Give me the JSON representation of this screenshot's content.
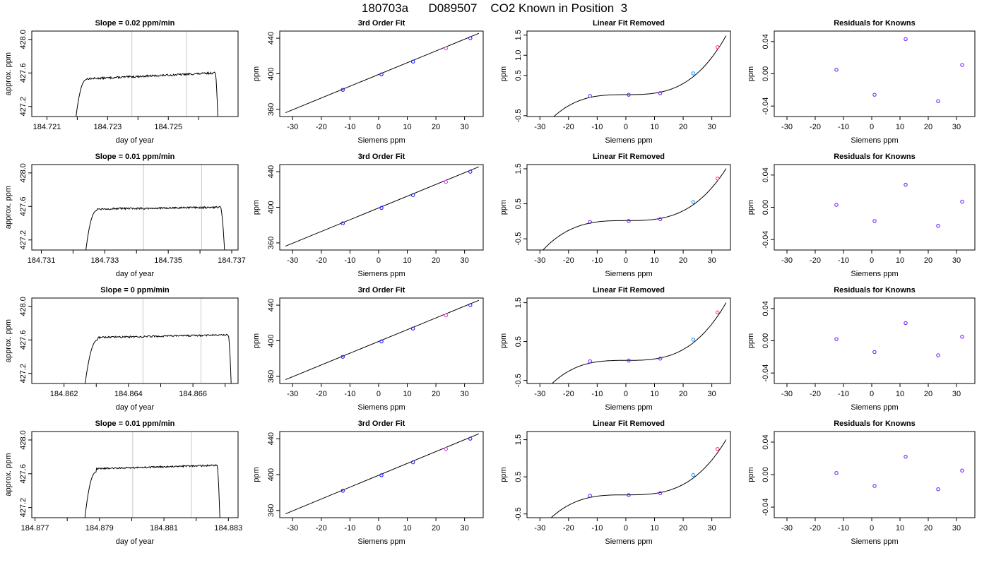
{
  "page": {
    "title": "180703a      D089507    CO2 Known in Position  3"
  },
  "chart_data": [
    {
      "type": "line",
      "panel": "time-series",
      "row": 1,
      "title": "Slope =  0.02  ppm/min",
      "xlabel": "day of year",
      "ylabel": "approx. ppm",
      "xlim": [
        184.7205,
        184.7273
      ],
      "ylim": [
        427.08,
        428.1
      ],
      "xticks": [
        184.721,
        184.723,
        184.725
      ],
      "xticks_unlabeled": [
        184.722,
        184.724,
        184.726
      ],
      "yticks": [
        427.2,
        427.6,
        428.0
      ],
      "vlines": [
        184.7238,
        184.7256
      ],
      "trace": {
        "x_start": 184.7219,
        "x_rise_end": 184.7223,
        "x_fall_start": 184.72655,
        "x_end": 184.72665,
        "y_start": 426.9,
        "y_rise_end": 427.52,
        "y_plateau_start": 427.53,
        "y_plateau_end": 427.6,
        "y_end": 426.9,
        "noise": 0.022
      }
    },
    {
      "type": "line",
      "panel": "fit",
      "row": 1,
      "title": "3rd Order Fit",
      "xlabel": "Siemens ppm",
      "ylabel": "ppm",
      "xlim": [
        -34.5,
        36.5
      ],
      "ylim": [
        352,
        448
      ],
      "xticks": [
        -30,
        -20,
        -10,
        0,
        10,
        20,
        30
      ],
      "yticks": [
        360,
        400,
        440
      ],
      "line": {
        "x": [
          -32.5,
          35
        ],
        "y": [
          356.3,
          445.5
        ]
      },
      "points": {
        "x": [
          -12.5,
          1,
          12,
          23.5,
          32
        ],
        "y": [
          382,
          399.3,
          413.7,
          428.5,
          440
        ]
      },
      "point_colors": [
        "#2222ff",
        "#2222ff",
        "#2222ff",
        "#dd44dd",
        "#2222ff"
      ]
    },
    {
      "type": "line",
      "panel": "linear-removed",
      "row": 1,
      "title": "Linear Fit Removed",
      "xlabel": "Siemens ppm",
      "ylabel": "ppm",
      "xlim": [
        -34.5,
        36.5
      ],
      "ylim": [
        -0.52,
        1.6
      ],
      "xticks": [
        -30,
        -20,
        -10,
        0,
        10,
        20,
        30
      ],
      "yticks": [
        -0.5,
        0.5,
        1.0,
        1.5
      ],
      "curve": {
        "x0": -32.5,
        "x1": 35,
        "cubic": [
          3.4e-05,
          -1e-06,
          0.0002,
          0.023
        ]
      },
      "points": {
        "x": [
          -12.5,
          1,
          12,
          23.5,
          32
        ],
        "y": [
          -0.01,
          0.02,
          0.06,
          0.55,
          1.2
        ]
      },
      "point_colors": [
        "#7722ff",
        "#7722ff",
        "#7722ff",
        "#2299ff",
        "#ff3377"
      ]
    },
    {
      "type": "scatter",
      "panel": "residuals",
      "row": 1,
      "title": "Residuals for Knowns",
      "xlabel": "Siemens ppm",
      "ylabel": "ppm",
      "xlim": [
        -34.5,
        36.5
      ],
      "ylim": [
        -0.053,
        0.053
      ],
      "xticks": [
        -30,
        -20,
        -10,
        0,
        10,
        20,
        30
      ],
      "yticks": [
        -0.04,
        0.0,
        0.04
      ],
      "points": {
        "x": [
          -12.5,
          1,
          12,
          23.5,
          32
        ],
        "y": [
          0.005,
          -0.026,
          0.043,
          -0.034,
          0.011
        ]
      },
      "point_colors": [
        "#7722ff",
        "#7722ff",
        "#7722ff",
        "#7722ff",
        "#7722ff"
      ]
    },
    {
      "type": "line",
      "panel": "time-series",
      "row": 2,
      "title": "Slope =  0.01  ppm/min",
      "xlabel": "day of year",
      "ylabel": "approx. ppm",
      "xlim": [
        184.7307,
        184.7372
      ],
      "ylim": [
        427.08,
        428.1
      ],
      "xticks": [
        184.731,
        184.733,
        184.735,
        184.737
      ],
      "xticks_unlabeled": [
        184.732,
        184.734,
        184.736
      ],
      "yticks": [
        427.2,
        427.6,
        428.0
      ],
      "vlines": [
        184.73422,
        184.73605
      ],
      "trace": {
        "x_start": 184.73235,
        "x_rise_end": 184.73275,
        "x_fall_start": 184.73665,
        "x_end": 184.7368,
        "y_start": 426.9,
        "y_rise_end": 427.55,
        "y_plateau_start": 427.57,
        "y_plateau_end": 427.59,
        "y_end": 426.9,
        "noise": 0.022
      }
    },
    {
      "type": "line",
      "panel": "fit",
      "row": 2,
      "title": "3rd Order Fit",
      "xlabel": "Siemens ppm",
      "ylabel": "ppm",
      "xlim": [
        -34.5,
        36.5
      ],
      "ylim": [
        352,
        448
      ],
      "xticks": [
        -30,
        -20,
        -10,
        0,
        10,
        20,
        30
      ],
      "yticks": [
        360,
        400,
        440
      ],
      "line": {
        "x": [
          -32.5,
          35
        ],
        "y": [
          356.3,
          445.5
        ]
      },
      "points": {
        "x": [
          -12.5,
          1,
          12,
          23.5,
          32
        ],
        "y": [
          382,
          399.3,
          413.7,
          428.5,
          440
        ]
      },
      "point_colors": [
        "#2222ff",
        "#2222ff",
        "#2222ff",
        "#dd44dd",
        "#2222ff"
      ]
    },
    {
      "type": "line",
      "panel": "linear-removed",
      "row": 2,
      "title": "Linear Fit Removed",
      "xlabel": "Siemens ppm",
      "ylabel": "ppm",
      "xlim": [
        -34.5,
        36.5
      ],
      "ylim": [
        -0.82,
        1.62
      ],
      "xticks": [
        -30,
        -20,
        -10,
        0,
        10,
        20,
        30
      ],
      "yticks": [
        -0.5,
        0.5,
        1.5
      ],
      "curve": {
        "x0": -32.5,
        "x1": 35,
        "cubic": [
          3.45e-05,
          0.0,
          0.0002,
          0.02
        ]
      },
      "points": {
        "x": [
          -12.5,
          1,
          12,
          23.5,
          32
        ],
        "y": [
          -0.02,
          0.01,
          0.06,
          0.55,
          1.22
        ]
      },
      "point_colors": [
        "#7722ff",
        "#7722ff",
        "#7722ff",
        "#2299ff",
        "#ff3377"
      ]
    },
    {
      "type": "scatter",
      "panel": "residuals",
      "row": 2,
      "title": "Residuals for Knowns",
      "xlabel": "Siemens ppm",
      "ylabel": "ppm",
      "xlim": [
        -34.5,
        36.5
      ],
      "ylim": [
        -0.053,
        0.053
      ],
      "xticks": [
        -30,
        -20,
        -10,
        0,
        10,
        20,
        30
      ],
      "yticks": [
        -0.04,
        0.0,
        0.04
      ],
      "points": {
        "x": [
          -12.5,
          1,
          12,
          23.5,
          32
        ],
        "y": [
          0.003,
          -0.017,
          0.028,
          -0.023,
          0.007
        ]
      },
      "point_colors": [
        "#7722ff",
        "#7722ff",
        "#7722ff",
        "#7722ff",
        "#7722ff"
      ]
    },
    {
      "type": "line",
      "panel": "time-series",
      "row": 3,
      "title": "Slope =  0  ppm/min",
      "xlabel": "day of year",
      "ylabel": "approx. ppm",
      "xlim": [
        184.861,
        184.8674
      ],
      "ylim": [
        427.08,
        428.1
      ],
      "xticks": [
        184.862,
        184.864,
        184.866
      ],
      "xticks_unlabeled": [
        184.863,
        184.865,
        184.867
      ],
      "yticks": [
        427.2,
        427.6,
        428.0
      ],
      "vlines": [
        184.86445,
        184.86625
      ],
      "trace": {
        "x_start": 184.8626,
        "x_rise_end": 184.86305,
        "x_fall_start": 184.8671,
        "x_end": 184.8672,
        "y_start": 426.9,
        "y_rise_end": 427.6,
        "y_plateau_start": 427.63,
        "y_plateau_end": 427.66,
        "y_end": 426.9,
        "noise": 0.02
      }
    },
    {
      "type": "line",
      "panel": "fit",
      "row": 3,
      "title": "3rd Order Fit",
      "xlabel": "Siemens ppm",
      "ylabel": "ppm",
      "xlim": [
        -34.5,
        36.5
      ],
      "ylim": [
        352,
        448
      ],
      "xticks": [
        -30,
        -20,
        -10,
        0,
        10,
        20,
        30
      ],
      "yticks": [
        360,
        400,
        440
      ],
      "line": {
        "x": [
          -32.5,
          35
        ],
        "y": [
          356.3,
          445.5
        ]
      },
      "points": {
        "x": [
          -12.5,
          1,
          12,
          23.5,
          32
        ],
        "y": [
          382,
          399.3,
          413.7,
          428.5,
          440
        ]
      },
      "point_colors": [
        "#2222ff",
        "#2222ff",
        "#2222ff",
        "#dd44dd",
        "#2222ff"
      ]
    },
    {
      "type": "line",
      "panel": "linear-removed",
      "row": 3,
      "title": "Linear Fit Removed",
      "xlabel": "Siemens ppm",
      "ylabel": "ppm",
      "xlim": [
        -34.5,
        36.5
      ],
      "ylim": [
        -0.58,
        1.62
      ],
      "xticks": [
        -30,
        -20,
        -10,
        0,
        10,
        20,
        30
      ],
      "yticks": [
        -0.5,
        0.5,
        1.5
      ],
      "curve": {
        "x0": -32.5,
        "x1": 35,
        "cubic": [
          3.45e-05,
          0.0,
          0.0002,
          0.015
        ]
      },
      "points": {
        "x": [
          -12.5,
          1,
          12,
          23.5,
          32
        ],
        "y": [
          -0.01,
          0.01,
          0.06,
          0.55,
          1.25
        ]
      },
      "point_colors": [
        "#7722ff",
        "#7722ff",
        "#7722ff",
        "#2299ff",
        "#ff3377"
      ]
    },
    {
      "type": "scatter",
      "panel": "residuals",
      "row": 3,
      "title": "Residuals for Knowns",
      "xlabel": "Siemens ppm",
      "ylabel": "ppm",
      "xlim": [
        -34.5,
        36.5
      ],
      "ylim": [
        -0.053,
        0.053
      ],
      "xticks": [
        -30,
        -20,
        -10,
        0,
        10,
        20,
        30
      ],
      "yticks": [
        -0.04,
        0.0,
        0.04
      ],
      "points": {
        "x": [
          -12.5,
          1,
          12,
          23.5,
          32
        ],
        "y": [
          0.002,
          -0.014,
          0.022,
          -0.018,
          0.005
        ]
      },
      "point_colors": [
        "#7722ff",
        "#7722ff",
        "#7722ff",
        "#7722ff",
        "#7722ff"
      ]
    },
    {
      "type": "line",
      "panel": "time-series",
      "row": 4,
      "title": "Slope =  0.01  ppm/min",
      "xlabel": "day of year",
      "ylabel": "approx. ppm",
      "xlim": [
        184.8769,
        184.8833
      ],
      "ylim": [
        427.08,
        428.1
      ],
      "xticks": [
        184.877,
        184.879,
        184.881,
        184.883
      ],
      "xticks_unlabeled": [
        184.878,
        184.88,
        184.882
      ],
      "yticks": [
        427.2,
        427.6,
        428.0
      ],
      "vlines": [
        184.88003,
        184.88185
      ],
      "trace": {
        "x_start": 184.8785,
        "x_rise_end": 184.8789,
        "x_fall_start": 184.88265,
        "x_end": 184.88275,
        "y_start": 426.9,
        "y_rise_end": 427.62,
        "y_plateau_start": 427.66,
        "y_plateau_end": 427.7,
        "y_end": 426.9,
        "noise": 0.018
      }
    },
    {
      "type": "line",
      "panel": "fit",
      "row": 4,
      "title": "3rd Order Fit",
      "xlabel": "Siemens ppm",
      "ylabel": "ppm",
      "xlim": [
        -34.5,
        36.5
      ],
      "ylim": [
        352,
        448
      ],
      "xticks": [
        -30,
        -20,
        -10,
        0,
        10,
        20,
        30
      ],
      "yticks": [
        360,
        400,
        440
      ],
      "line": {
        "x": [
          -32.5,
          35
        ],
        "y": [
          356.3,
          445.5
        ]
      },
      "points": {
        "x": [
          -12.5,
          1,
          12,
          23.5,
          32
        ],
        "y": [
          382,
          399.3,
          413.7,
          428.5,
          440
        ]
      },
      "point_colors": [
        "#2222ff",
        "#2222ff",
        "#2222ff",
        "#dd44dd",
        "#2222ff"
      ]
    },
    {
      "type": "line",
      "panel": "linear-removed",
      "row": 4,
      "title": "Linear Fit Removed",
      "xlabel": "Siemens ppm",
      "ylabel": "ppm",
      "xlim": [
        -34.5,
        36.5
      ],
      "ylim": [
        -0.6,
        1.72
      ],
      "xticks": [
        -30,
        -20,
        -10,
        0,
        10,
        20,
        30
      ],
      "yticks": [
        -0.5,
        0.5,
        1.5
      ],
      "curve": {
        "x0": -32.5,
        "x1": 35,
        "cubic": [
          3.45e-05,
          0.0,
          0.0002,
          0.015
        ]
      },
      "points": {
        "x": [
          -12.5,
          1,
          12,
          23.5,
          32
        ],
        "y": [
          -0.01,
          0.01,
          0.06,
          0.55,
          1.25
        ]
      },
      "point_colors": [
        "#7722ff",
        "#7722ff",
        "#7722ff",
        "#2299ff",
        "#ff3377"
      ]
    },
    {
      "type": "scatter",
      "panel": "residuals",
      "row": 4,
      "title": "Residuals for Knowns",
      "xlabel": "Siemens ppm",
      "ylabel": "ppm",
      "xlim": [
        -34.5,
        36.5
      ],
      "ylim": [
        -0.053,
        0.053
      ],
      "xticks": [
        -30,
        -20,
        -10,
        0,
        10,
        20,
        30
      ],
      "yticks": [
        -0.04,
        0.0,
        0.04
      ],
      "points": {
        "x": [
          -12.5,
          1,
          12,
          23.5,
          32
        ],
        "y": [
          0.002,
          -0.014,
          0.022,
          -0.018,
          0.005
        ]
      },
      "point_colors": [
        "#7722ff",
        "#7722ff",
        "#7722ff",
        "#7722ff",
        "#7722ff"
      ]
    }
  ]
}
